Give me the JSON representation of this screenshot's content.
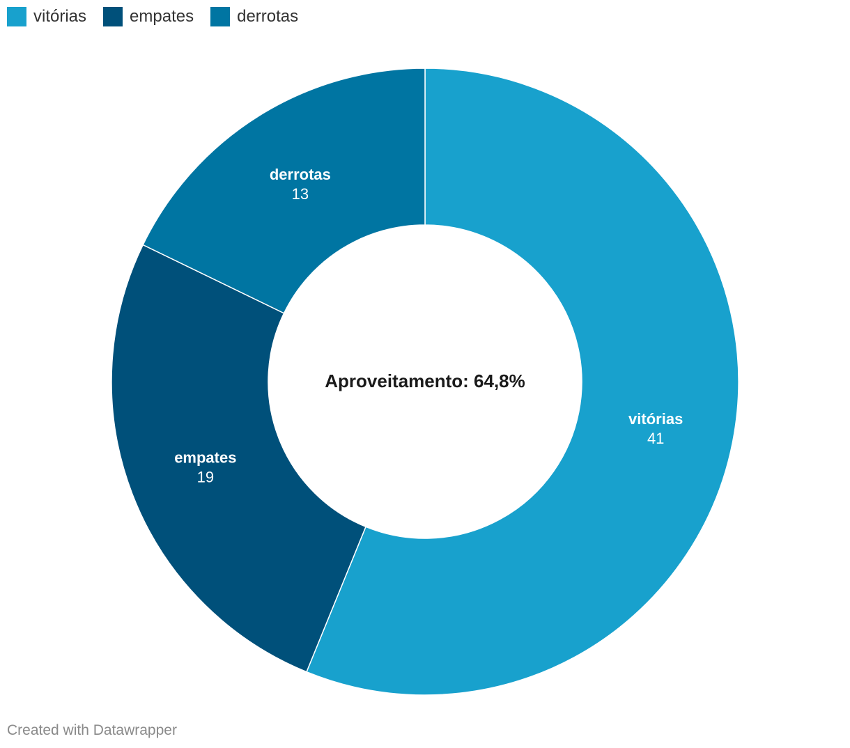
{
  "chart_data": {
    "type": "pie",
    "style": "donut",
    "categories": [
      "vitórias",
      "empates",
      "derrotas"
    ],
    "values": [
      41,
      19,
      13
    ],
    "colors": [
      "#18a1cd",
      "#00507a",
      "#0075a2"
    ],
    "center_label": "Aproveitamento: 64,8%",
    "legend_position": "top-left"
  },
  "legend": {
    "items": [
      {
        "label": "vitórias",
        "color": "#18a1cd"
      },
      {
        "label": "empates",
        "color": "#00507a"
      },
      {
        "label": "derrotas",
        "color": "#0075a2"
      }
    ]
  },
  "footer": {
    "credit": "Created with Datawrapper"
  }
}
